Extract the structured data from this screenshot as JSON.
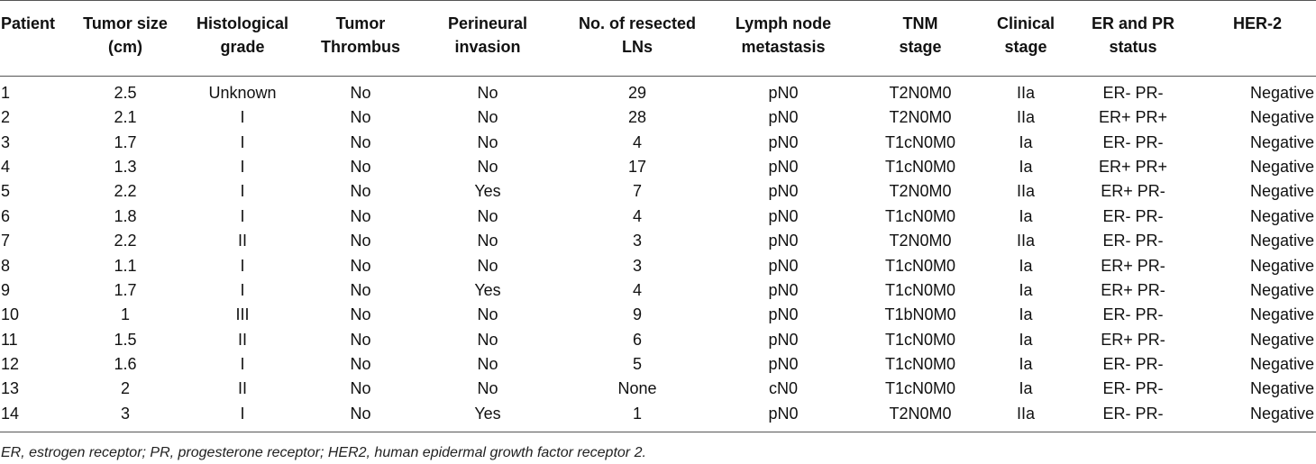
{
  "table": {
    "headers": [
      [
        "Patient"
      ],
      [
        "Tumor size",
        "(cm)"
      ],
      [
        "Histological",
        "grade"
      ],
      [
        "Tumor",
        "Thrombus"
      ],
      [
        "Perineural",
        "invasion"
      ],
      [
        "No. of resected",
        "LNs"
      ],
      [
        "Lymph node",
        "metastasis"
      ],
      [
        "TNM",
        "stage"
      ],
      [
        "Clinical",
        "stage"
      ],
      [
        "ER and PR",
        "status"
      ],
      [
        "HER-2"
      ]
    ],
    "rows": [
      [
        "1",
        "2.5",
        "Unknown",
        "No",
        "No",
        "29",
        "pN0",
        "T2N0M0",
        "IIa",
        "ER- PR-",
        "Negative"
      ],
      [
        "2",
        "2.1",
        "I",
        "No",
        "No",
        "28",
        "pN0",
        "T2N0M0",
        "IIa",
        "ER+ PR+",
        "Negative"
      ],
      [
        "3",
        "1.7",
        "I",
        "No",
        "No",
        "4",
        "pN0",
        "T1cN0M0",
        "Ia",
        "ER- PR-",
        "Negative"
      ],
      [
        "4",
        "1.3",
        "I",
        "No",
        "No",
        "17",
        "pN0",
        "T1cN0M0",
        "Ia",
        "ER+ PR+",
        "Negative"
      ],
      [
        "5",
        "2.2",
        "I",
        "No",
        "Yes",
        "7",
        "pN0",
        "T2N0M0",
        "IIa",
        "ER+ PR-",
        "Negative"
      ],
      [
        "6",
        "1.8",
        "I",
        "No",
        "No",
        "4",
        "pN0",
        "T1cN0M0",
        "Ia",
        "ER- PR-",
        "Negative"
      ],
      [
        "7",
        "2.2",
        "II",
        "No",
        "No",
        "3",
        "pN0",
        "T2N0M0",
        "IIa",
        "ER- PR-",
        "Negative"
      ],
      [
        "8",
        "1.1",
        "I",
        "No",
        "No",
        "3",
        "pN0",
        "T1cN0M0",
        "Ia",
        "ER+ PR-",
        "Negative"
      ],
      [
        "9",
        "1.7",
        "I",
        "No",
        "Yes",
        "4",
        "pN0",
        "T1cN0M0",
        "Ia",
        "ER+ PR-",
        "Negative"
      ],
      [
        "10",
        "1",
        "III",
        "No",
        "No",
        "9",
        "pN0",
        "T1bN0M0",
        "Ia",
        "ER- PR-",
        "Negative"
      ],
      [
        "11",
        "1.5",
        "II",
        "No",
        "No",
        "6",
        "pN0",
        "T1cN0M0",
        "Ia",
        "ER+ PR-",
        "Negative"
      ],
      [
        "12",
        "1.6",
        "I",
        "No",
        "No",
        "5",
        "pN0",
        "T1cN0M0",
        "Ia",
        "ER- PR-",
        "Negative"
      ],
      [
        "13",
        "2",
        "II",
        "No",
        "No",
        "None",
        "cN0",
        "T1cN0M0",
        "Ia",
        "ER- PR-",
        "Negative"
      ],
      [
        "14",
        "3",
        "I",
        "No",
        "Yes",
        "1",
        "pN0",
        "T2N0M0",
        "IIa",
        "ER- PR-",
        "Negative"
      ]
    ]
  },
  "footnote": "ER, estrogen receptor; PR, progesterone receptor; HER2, human epidermal growth factor receptor 2."
}
